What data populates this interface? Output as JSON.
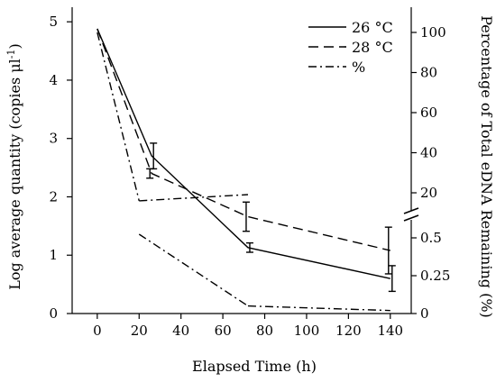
{
  "chart_data": {
    "type": "line",
    "xlabel": "Elapsed Time (h)",
    "ylabel": "Log average quantity (copies μl",
    "ylabel_sup": "-1",
    "ylabel_close": ")",
    "y2label": "Percentage of Total eDNA Remaining (%)",
    "xlim": [
      -12,
      150
    ],
    "ylim": [
      0,
      5.25
    ],
    "xticks": [
      0,
      20,
      40,
      60,
      80,
      100,
      120,
      140
    ],
    "xtick_labels": [
      "0",
      "20",
      "40",
      "60",
      "80",
      "100",
      "120",
      "140"
    ],
    "yticks": [
      0,
      1,
      2,
      3,
      4,
      5
    ],
    "ytick_labels": [
      "0",
      "1",
      "2",
      "3",
      "4",
      "5"
    ],
    "y2_axis": {
      "broken": true,
      "break_at": 0.75,
      "lower_ticks": [
        {
          "label": "0",
          "value": 0
        },
        {
          "label": "0.25",
          "value": 0.25
        },
        {
          "label": "0.5",
          "value": 0.5
        }
      ],
      "upper_ticks": [
        {
          "label": "20",
          "value": 20
        },
        {
          "label": "40",
          "value": 40
        },
        {
          "label": "60",
          "value": 60
        },
        {
          "label": "80",
          "value": 80
        },
        {
          "label": "100",
          "value": 100
        }
      ]
    },
    "series": [
      {
        "name": "26 °C",
        "style": "solid",
        "axis": "left",
        "x": [
          0,
          26,
          72,
          140
        ],
        "y": [
          4.88,
          2.7,
          1.13,
          0.6
        ],
        "err": [
          0.06,
          0.22,
          0.08,
          0.22
        ]
      },
      {
        "name": "28 °C",
        "style": "dashed",
        "axis": "left",
        "x": [
          0,
          26,
          72,
          140
        ],
        "y": [
          4.88,
          2.4,
          1.66,
          1.08
        ],
        "err": [
          0.06,
          0.08,
          0.25,
          0.4
        ]
      },
      {
        "name": "%",
        "style": "dashdot",
        "axis": "right",
        "x": [
          0,
          20,
          72,
          140
        ],
        "y": [
          100,
          16,
          0.05,
          0.02
        ],
        "err": []
      }
    ],
    "legend": "top-right",
    "grid": false
  }
}
